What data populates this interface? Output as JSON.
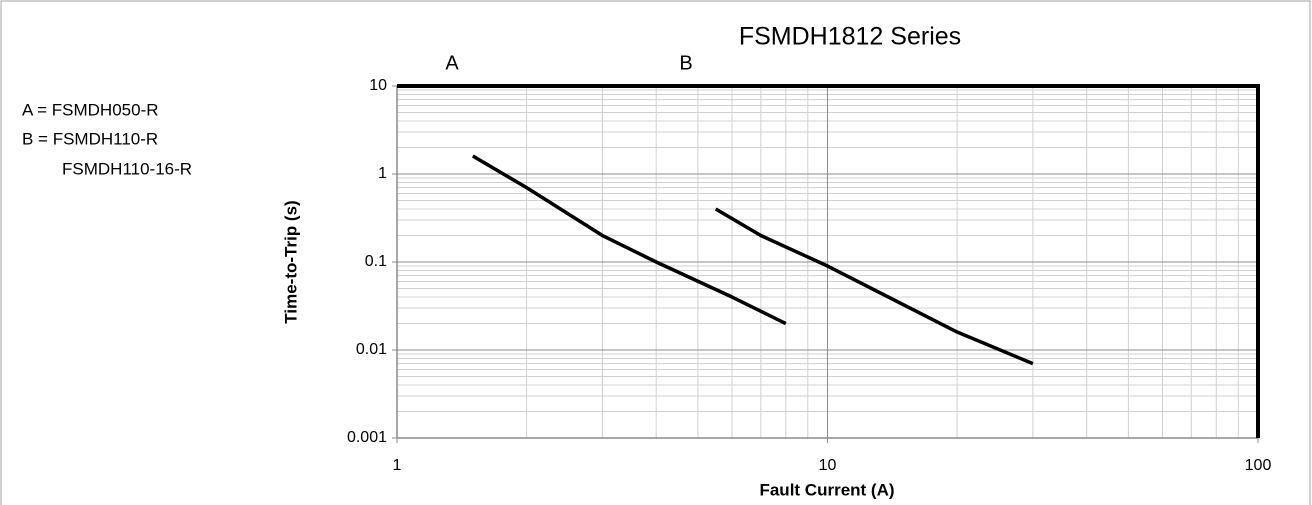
{
  "chart_data": {
    "type": "line",
    "title": "FSMDH1812 Series",
    "xlabel": "Fault Current (A)",
    "ylabel": "Time-to-Trip (s)",
    "notes": [
      "A = FSMDH050-R",
      "B = FSMDH110-R",
      "FSMDH110-16-R"
    ],
    "series": [
      {
        "name": "A",
        "color": "#000000",
        "x": [
          1.5,
          2,
          3,
          4,
          6,
          8
        ],
        "values": [
          1.6,
          0.7,
          0.2,
          0.1,
          0.04,
          0.02
        ]
      },
      {
        "name": "B",
        "color": "#000000",
        "x": [
          5.5,
          7,
          10,
          20,
          30
        ],
        "values": [
          0.4,
          0.2,
          0.09,
          0.016,
          0.007
        ]
      }
    ],
    "xlim": [
      1,
      100
    ],
    "xticks": [
      1,
      10,
      100
    ],
    "ylim": [
      0.001,
      10
    ],
    "yticks": [
      0.001,
      0.01,
      0.1,
      1,
      10
    ],
    "xlog": true,
    "ylog": true,
    "grid": true,
    "minor_grid": true
  }
}
